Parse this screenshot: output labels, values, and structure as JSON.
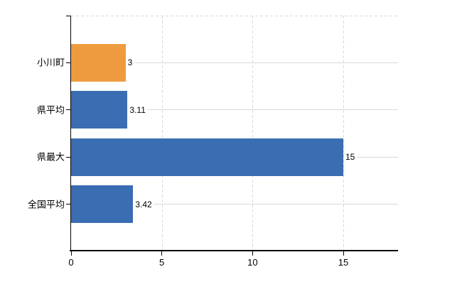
{
  "chart_data": {
    "type": "bar",
    "orientation": "horizontal",
    "title": "",
    "xlabel": "",
    "ylabel": "",
    "categories": [
      "小川町",
      "県平均",
      "県最大",
      "全国平均"
    ],
    "values": [
      3,
      3.11,
      15,
      3.42
    ],
    "value_labels": [
      "3",
      "3.11",
      "15",
      "3.42"
    ],
    "bar_colors": [
      "#ee9b40",
      "#3a6db1",
      "#3a6db1",
      "#3a6db1"
    ],
    "x_ticks": [
      0,
      5,
      10,
      15
    ],
    "x_tick_labels": [
      "0",
      "5",
      "10",
      "15"
    ],
    "xlim": [
      0,
      18
    ],
    "grid": "vertical-dashed",
    "legend": "none"
  },
  "colors": {
    "background": "#ffffff",
    "axis": "#000000",
    "gridline": "#d9d9d9",
    "text": "#000000",
    "highlight_bar": "#ee9b40",
    "default_bar": "#3a6db1"
  }
}
